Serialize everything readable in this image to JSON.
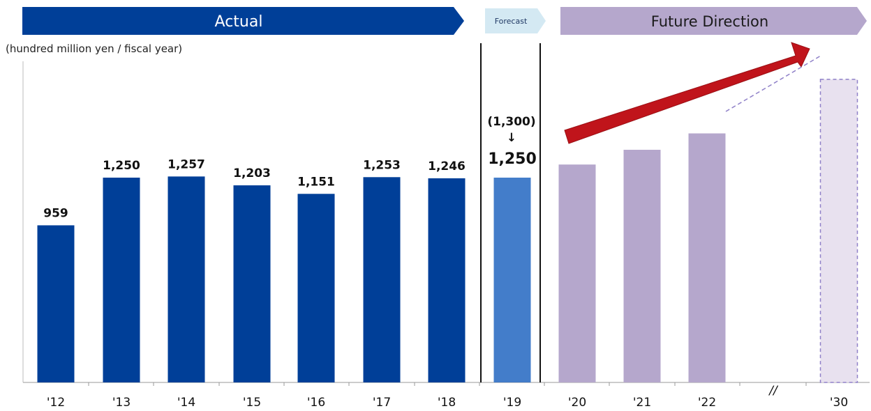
{
  "header": {
    "actual_label": "Actual",
    "forecast_label": "Forecast",
    "future_label": "Future Direction"
  },
  "unit_label": "(hundred million yen / fiscal year)",
  "colors": {
    "actual": "#003f98",
    "forecast": "#2f6fc4",
    "future": "#b5a7cc",
    "future_light": "#e8e1ef",
    "arrow": "#c0141b",
    "forecast_header": "#d4e9f3"
  },
  "chart_data": {
    "type": "bar",
    "ylabel": "(hundred million yen / fiscal year)",
    "ylim": [
      0,
      1800
    ],
    "categories": [
      "'12",
      "'13",
      "'14",
      "'15",
      "'16",
      "'17",
      "'18",
      "'19",
      "'20",
      "'21",
      "'22",
      "'30"
    ],
    "series": [
      {
        "values": [
          959,
          1250,
          1257,
          1203,
          1151,
          1253,
          1246,
          1250,
          1330,
          1420,
          1520,
          1850
        ]
      }
    ],
    "groups": [
      "actual",
      "actual",
      "actual",
      "actual",
      "actual",
      "actual",
      "actual",
      "forecast",
      "future",
      "future",
      "future",
      "future"
    ],
    "data_labels": [
      "959",
      "1,250",
      "1,257",
      "1,203",
      "1,151",
      "1,253",
      "1,246",
      "1,250",
      "",
      "",
      "",
      ""
    ],
    "forecast_previous": "(1,300)",
    "forecast_arrow": "↓",
    "axis_break": "//"
  }
}
